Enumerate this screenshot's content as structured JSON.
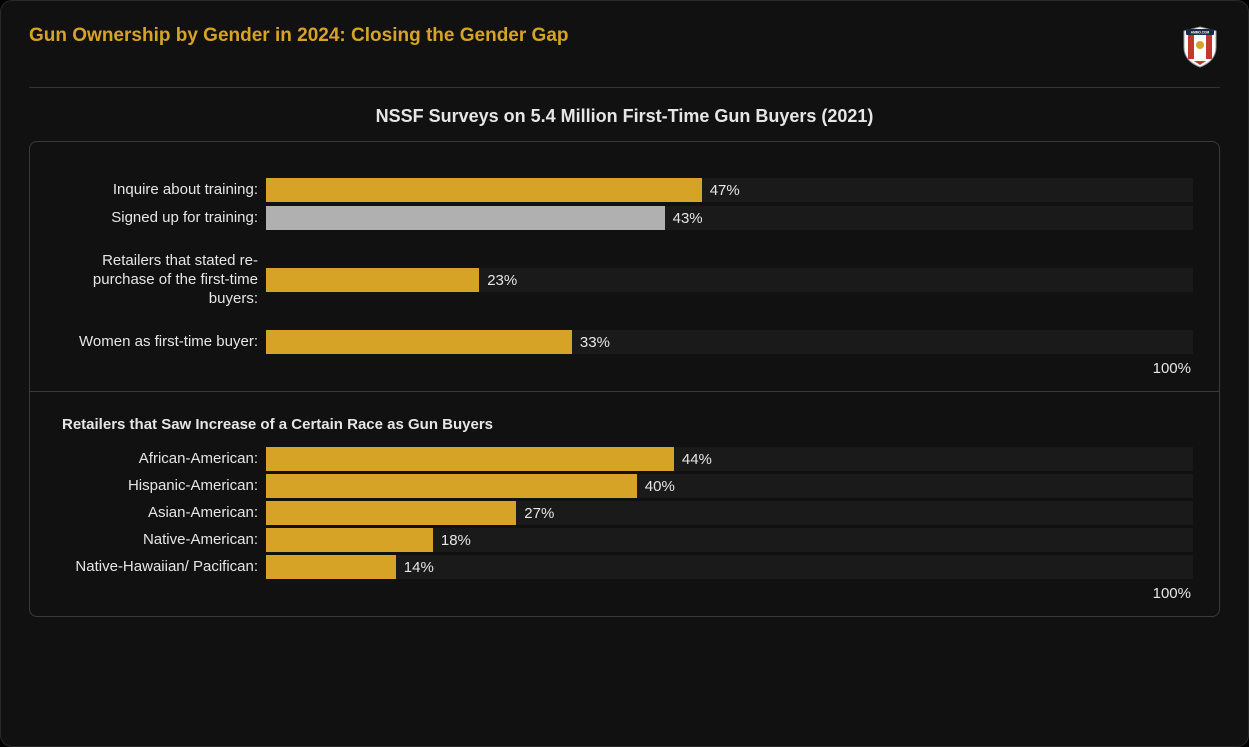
{
  "page_title": "Gun Ownership by Gender in 2024: Closing the Gender Gap",
  "chart_title": "NSSF Surveys on 5.4 Million First-Time Gun Buyers (2021)",
  "logo_label": "AMMO.COM",
  "colors": {
    "background": "#111111",
    "title": "#d6a327",
    "text": "#e6e6e6",
    "track": "#1a1a1a",
    "bar_gold": "#d6a327",
    "bar_grey": "#b0b0b0",
    "border": "#3a3a3a"
  },
  "top_panel": {
    "type": "bar",
    "x_max": 100,
    "axis_max_label": "100%",
    "bars": [
      {
        "label": "Inquire about training:",
        "value": 47,
        "display": "47%",
        "color": "#d6a327",
        "gap_after": false
      },
      {
        "label": "Signed up for training:",
        "value": 43,
        "display": "43%",
        "color": "#b0b0b0",
        "gap_after": true
      },
      {
        "label": "Retailers that stated re-purchase of the first-time buyers:",
        "value": 23,
        "display": "23%",
        "color": "#d6a327",
        "gap_after": true
      },
      {
        "label": "Women as first-time buyer:",
        "value": 33,
        "display": "33%",
        "color": "#d6a327",
        "gap_after": false
      }
    ]
  },
  "bottom_panel": {
    "type": "bar",
    "sub_title": "Retailers that Saw Increase of a Certain Race as Gun Buyers",
    "x_max": 100,
    "axis_max_label": "100%",
    "bars": [
      {
        "label": "African-American:",
        "value": 44,
        "display": "44%",
        "color": "#d6a327"
      },
      {
        "label": "Hispanic-American:",
        "value": 40,
        "display": "40%",
        "color": "#d6a327"
      },
      {
        "label": "Asian-American:",
        "value": 27,
        "display": "27%",
        "color": "#d6a327"
      },
      {
        "label": "Native-American:",
        "value": 18,
        "display": "18%",
        "color": "#d6a327"
      },
      {
        "label": "Native-Hawaiian/ Pacifican:",
        "value": 14,
        "display": "14%",
        "color": "#d6a327"
      }
    ]
  }
}
